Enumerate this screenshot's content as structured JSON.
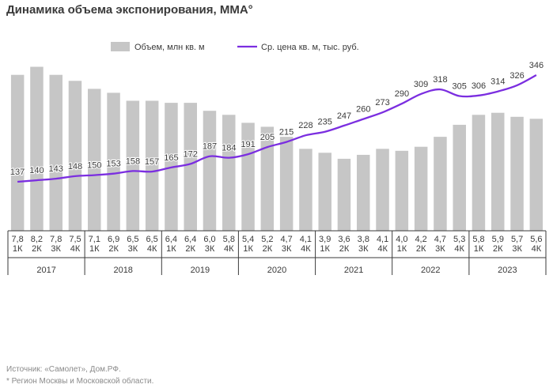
{
  "chart_data": {
    "type": "bar",
    "title": "Динамика объема экспонирования, ММА°",
    "legend": {
      "placement": "top-center"
    },
    "quarter_labels": [
      "1К",
      "2К",
      "3К",
      "4К",
      "1К",
      "2К",
      "3К",
      "4К",
      "1К",
      "2К",
      "3К",
      "4К",
      "1К",
      "2К",
      "3К",
      "4К",
      "1К",
      "2К",
      "3К",
      "4К",
      "1К",
      "2К",
      "3К",
      "4К",
      "1К",
      "2К",
      "3К",
      "4К"
    ],
    "years": [
      "2017",
      "2018",
      "2019",
      "2020",
      "2021",
      "2022",
      "2023"
    ],
    "bar_value_labels": [
      "7,8",
      "8,2",
      "7,8",
      "7,5",
      "7,1",
      "6,9",
      "6,5",
      "6,5",
      "6,4",
      "6,4",
      "6,0",
      "5,8",
      "5,4",
      "5,2",
      "4,7",
      "4,1",
      "3,9",
      "3,6",
      "3,8",
      "4,1",
      "4,0",
      "4,2",
      "4,7",
      "5,3",
      "5,8",
      "5,9",
      "5,7",
      "5,6"
    ],
    "line_value_labels": [
      "137",
      "140",
      "143",
      "148",
      "150",
      "153",
      "158",
      "157",
      "165",
      "172",
      "187",
      "184",
      "191",
      "205",
      "215",
      "228",
      "235",
      "247",
      "260",
      "273",
      "290",
      "309",
      "318",
      "305",
      "306",
      "314",
      "326",
      "346"
    ],
    "series": [
      {
        "name": "Объем, млн кв. м",
        "type": "bar",
        "color": "#c6c6c6",
        "values": [
          7.8,
          8.2,
          7.8,
          7.5,
          7.1,
          6.9,
          6.5,
          6.5,
          6.4,
          6.4,
          6.0,
          5.8,
          5.4,
          5.2,
          4.7,
          4.1,
          3.9,
          3.6,
          3.8,
          4.1,
          4.0,
          4.2,
          4.7,
          5.3,
          5.8,
          5.9,
          5.7,
          5.6
        ]
      },
      {
        "name": "Ср. цена кв. м, тыс. руб.",
        "type": "line",
        "color": "#7b2ee0",
        "values": [
          137,
          140,
          143,
          148,
          150,
          153,
          158,
          157,
          165,
          172,
          187,
          184,
          191,
          205,
          215,
          228,
          235,
          247,
          260,
          273,
          290,
          309,
          318,
          305,
          306,
          314,
          326,
          346
        ]
      }
    ]
  },
  "footnotes": {
    "source": "Источник: «Самолет», Дом.РФ.",
    "region": "* Регион Москвы и Московской области."
  }
}
